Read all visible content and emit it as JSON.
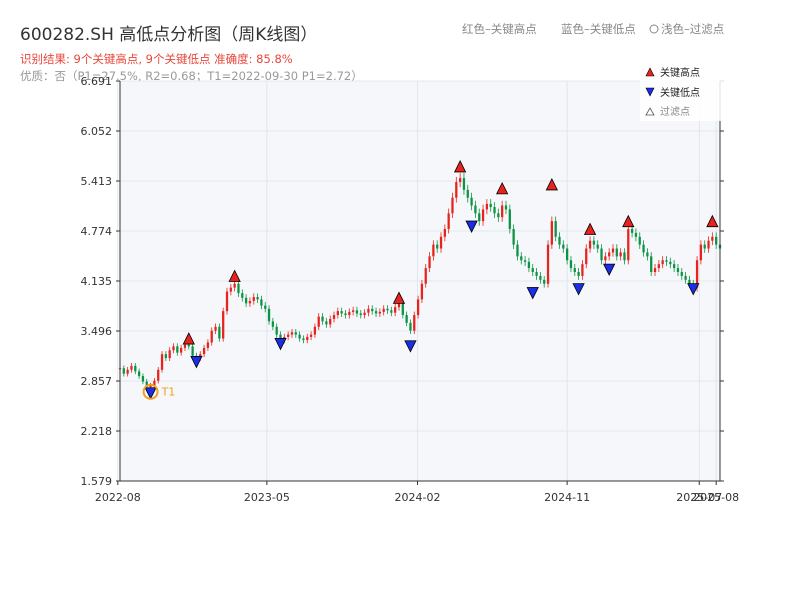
{
  "header": {
    "title": "600282.SH 高低点分析图（周K线图）",
    "result_line": "识别结果: 9个关键高点, 9个关键低点  准确度: 85.8%",
    "quality_line": "优质：否（P1=27.5%, R2=0.68；T1=2022-09-30 P1=2.72）",
    "top_legend": {
      "red": "红色–关键高点",
      "blue": "蓝色–关键低点",
      "gray": "浅色–过滤点"
    }
  },
  "legend": {
    "high": "关键高点",
    "low": "关键低点",
    "filtered": "过滤点"
  },
  "colors": {
    "up": "#e8231d",
    "down": "#0a9443",
    "high_marker": "#e8231d",
    "low_marker": "#1a2ee8",
    "t1": "#f0a020"
  },
  "chart_data": {
    "type": "candlestick",
    "y_ticks": [
      1.579,
      2.218,
      2.857,
      3.496,
      4.135,
      4.774,
      5.413,
      6.052,
      6.691
    ],
    "ylim": [
      1.579,
      6.691
    ],
    "x_ticks": [
      "2022-08",
      "2023-05",
      "2024-02",
      "2024-11",
      "2025-07",
      "2025-08"
    ],
    "x_range": [
      "2022-08-05",
      "2025-08-08"
    ],
    "grid": true,
    "legend_position": "top-right",
    "series": [
      {
        "date": "2022-08-05",
        "close": 3.02
      },
      {
        "date": "2022-08-12",
        "close": 2.95
      },
      {
        "date": "2022-08-19",
        "close": 3.0
      },
      {
        "date": "2022-08-26",
        "close": 3.05
      },
      {
        "date": "2022-09-02",
        "close": 2.98
      },
      {
        "date": "2022-09-09",
        "close": 2.92
      },
      {
        "date": "2022-09-16",
        "close": 2.85
      },
      {
        "date": "2022-09-23",
        "close": 2.78
      },
      {
        "date": "2022-09-30",
        "close": 2.8
      },
      {
        "date": "2022-10-07",
        "close": 2.86
      },
      {
        "date": "2022-10-14",
        "close": 3.0
      },
      {
        "date": "2022-10-21",
        "close": 3.2
      },
      {
        "date": "2022-10-28",
        "close": 3.15
      },
      {
        "date": "2022-11-04",
        "close": 3.25
      },
      {
        "date": "2022-11-11",
        "close": 3.3
      },
      {
        "date": "2022-11-18",
        "close": 3.22
      },
      {
        "date": "2022-11-25",
        "close": 3.28
      },
      {
        "date": "2022-12-02",
        "close": 3.32
      },
      {
        "date": "2022-12-09",
        "close": 3.3
      },
      {
        "date": "2022-12-16",
        "close": 3.18
      },
      {
        "date": "2022-12-23",
        "close": 3.15
      },
      {
        "date": "2022-12-30",
        "close": 3.2
      },
      {
        "date": "2023-01-06",
        "close": 3.28
      },
      {
        "date": "2023-01-13",
        "close": 3.35
      },
      {
        "date": "2023-01-20",
        "close": 3.5
      },
      {
        "date": "2023-01-27",
        "close": 3.55
      },
      {
        "date": "2023-02-03",
        "close": 3.4
      },
      {
        "date": "2023-02-10",
        "close": 3.75
      },
      {
        "date": "2023-02-17",
        "close": 4.0
      },
      {
        "date": "2023-02-24",
        "close": 4.05
      },
      {
        "date": "2023-03-03",
        "close": 4.1
      },
      {
        "date": "2023-03-10",
        "close": 3.98
      },
      {
        "date": "2023-03-17",
        "close": 3.92
      },
      {
        "date": "2023-03-24",
        "close": 3.85
      },
      {
        "date": "2023-03-31",
        "close": 3.88
      },
      {
        "date": "2023-04-07",
        "close": 3.93
      },
      {
        "date": "2023-04-14",
        "close": 3.9
      },
      {
        "date": "2023-04-21",
        "close": 3.82
      },
      {
        "date": "2023-04-28",
        "close": 3.78
      },
      {
        "date": "2023-05-05",
        "close": 3.62
      },
      {
        "date": "2023-05-12",
        "close": 3.55
      },
      {
        "date": "2023-05-19",
        "close": 3.45
      },
      {
        "date": "2023-05-26",
        "close": 3.38
      },
      {
        "date": "2023-06-02",
        "close": 3.42
      },
      {
        "date": "2023-06-09",
        "close": 3.45
      },
      {
        "date": "2023-06-16",
        "close": 3.48
      },
      {
        "date": "2023-06-23",
        "close": 3.45
      },
      {
        "date": "2023-06-30",
        "close": 3.4
      },
      {
        "date": "2023-07-07",
        "close": 3.38
      },
      {
        "date": "2023-07-14",
        "close": 3.42
      },
      {
        "date": "2023-07-21",
        "close": 3.45
      },
      {
        "date": "2023-07-28",
        "close": 3.55
      },
      {
        "date": "2023-08-04",
        "close": 3.68
      },
      {
        "date": "2023-08-11",
        "close": 3.62
      },
      {
        "date": "2023-08-18",
        "close": 3.58
      },
      {
        "date": "2023-08-25",
        "close": 3.65
      },
      {
        "date": "2023-09-01",
        "close": 3.7
      },
      {
        "date": "2023-09-08",
        "close": 3.75
      },
      {
        "date": "2023-09-15",
        "close": 3.72
      },
      {
        "date": "2023-09-22",
        "close": 3.7
      },
      {
        "date": "2023-09-29",
        "close": 3.74
      },
      {
        "date": "2023-10-06",
        "close": 3.76
      },
      {
        "date": "2023-10-13",
        "close": 3.72
      },
      {
        "date": "2023-10-20",
        "close": 3.7
      },
      {
        "date": "2023-10-27",
        "close": 3.73
      },
      {
        "date": "2023-11-03",
        "close": 3.78
      },
      {
        "date": "2023-11-10",
        "close": 3.75
      },
      {
        "date": "2023-11-17",
        "close": 3.72
      },
      {
        "date": "2023-11-24",
        "close": 3.74
      },
      {
        "date": "2023-12-01",
        "close": 3.78
      },
      {
        "date": "2023-12-08",
        "close": 3.76
      },
      {
        "date": "2023-12-15",
        "close": 3.73
      },
      {
        "date": "2023-12-22",
        "close": 3.8
      },
      {
        "date": "2023-12-29",
        "close": 3.85
      },
      {
        "date": "2024-01-05",
        "close": 3.7
      },
      {
        "date": "2024-01-12",
        "close": 3.6
      },
      {
        "date": "2024-01-19",
        "close": 3.5
      },
      {
        "date": "2024-01-26",
        "close": 3.7
      },
      {
        "date": "2024-02-02",
        "close": 3.9
      },
      {
        "date": "2024-02-09",
        "close": 4.1
      },
      {
        "date": "2024-02-16",
        "close": 4.3
      },
      {
        "date": "2024-02-23",
        "close": 4.45
      },
      {
        "date": "2024-03-01",
        "close": 4.6
      },
      {
        "date": "2024-03-08",
        "close": 4.55
      },
      {
        "date": "2024-03-15",
        "close": 4.7
      },
      {
        "date": "2024-03-22",
        "close": 4.8
      },
      {
        "date": "2024-03-29",
        "close": 5.0
      },
      {
        "date": "2024-04-05",
        "close": 5.2
      },
      {
        "date": "2024-04-12",
        "close": 5.4
      },
      {
        "date": "2024-04-19",
        "close": 5.45
      },
      {
        "date": "2024-04-26",
        "close": 5.3
      },
      {
        "date": "2024-05-03",
        "close": 5.2
      },
      {
        "date": "2024-05-10",
        "close": 5.1
      },
      {
        "date": "2024-05-17",
        "close": 5.0
      },
      {
        "date": "2024-05-24",
        "close": 4.9
      },
      {
        "date": "2024-05-31",
        "close": 5.05
      },
      {
        "date": "2024-06-07",
        "close": 5.12
      },
      {
        "date": "2024-06-14",
        "close": 5.08
      },
      {
        "date": "2024-06-21",
        "close": 5.0
      },
      {
        "date": "2024-06-28",
        "close": 4.95
      },
      {
        "date": "2024-07-05",
        "close": 5.1
      },
      {
        "date": "2024-07-12",
        "close": 5.05
      },
      {
        "date": "2024-07-19",
        "close": 4.8
      },
      {
        "date": "2024-07-26",
        "close": 4.6
      },
      {
        "date": "2024-08-02",
        "close": 4.45
      },
      {
        "date": "2024-08-09",
        "close": 4.4
      },
      {
        "date": "2024-08-16",
        "close": 4.38
      },
      {
        "date": "2024-08-23",
        "close": 4.3
      },
      {
        "date": "2024-08-30",
        "close": 4.25
      },
      {
        "date": "2024-09-06",
        "close": 4.2
      },
      {
        "date": "2024-09-13",
        "close": 4.15
      },
      {
        "date": "2024-09-20",
        "close": 4.1
      },
      {
        "date": "2024-09-27",
        "close": 4.6
      },
      {
        "date": "2024-10-04",
        "close": 4.9
      },
      {
        "date": "2024-10-11",
        "close": 4.7
      },
      {
        "date": "2024-10-18",
        "close": 4.6
      },
      {
        "date": "2024-10-25",
        "close": 4.55
      },
      {
        "date": "2024-11-01",
        "close": 4.4
      },
      {
        "date": "2024-11-08",
        "close": 4.3
      },
      {
        "date": "2024-11-15",
        "close": 4.25
      },
      {
        "date": "2024-11-22",
        "close": 4.2
      },
      {
        "date": "2024-11-29",
        "close": 4.35
      },
      {
        "date": "2024-12-06",
        "close": 4.55
      },
      {
        "date": "2024-12-13",
        "close": 4.65
      },
      {
        "date": "2024-12-20",
        "close": 4.6
      },
      {
        "date": "2024-12-27",
        "close": 4.55
      },
      {
        "date": "2025-01-03",
        "close": 4.4
      },
      {
        "date": "2025-01-10",
        "close": 4.45
      },
      {
        "date": "2025-01-17",
        "close": 4.5
      },
      {
        "date": "2025-01-24",
        "close": 4.55
      },
      {
        "date": "2025-01-31",
        "close": 4.45
      },
      {
        "date": "2025-02-07",
        "close": 4.5
      },
      {
        "date": "2025-02-14",
        "close": 4.4
      },
      {
        "date": "2025-02-21",
        "close": 4.8
      },
      {
        "date": "2025-02-28",
        "close": 4.75
      },
      {
        "date": "2025-03-07",
        "close": 4.7
      },
      {
        "date": "2025-03-14",
        "close": 4.6
      },
      {
        "date": "2025-03-21",
        "close": 4.5
      },
      {
        "date": "2025-03-28",
        "close": 4.45
      },
      {
        "date": "2025-04-04",
        "close": 4.25
      },
      {
        "date": "2025-04-11",
        "close": 4.3
      },
      {
        "date": "2025-04-18",
        "close": 4.35
      },
      {
        "date": "2025-04-25",
        "close": 4.4
      },
      {
        "date": "2025-05-02",
        "close": 4.38
      },
      {
        "date": "2025-05-09",
        "close": 4.35
      },
      {
        "date": "2025-05-16",
        "close": 4.3
      },
      {
        "date": "2025-05-23",
        "close": 4.25
      },
      {
        "date": "2025-05-30",
        "close": 4.2
      },
      {
        "date": "2025-06-06",
        "close": 4.15
      },
      {
        "date": "2025-06-13",
        "close": 4.1
      },
      {
        "date": "2025-06-20",
        "close": 4.05
      },
      {
        "date": "2025-06-27",
        "close": 4.4
      },
      {
        "date": "2025-07-04",
        "close": 4.6
      },
      {
        "date": "2025-07-11",
        "close": 4.55
      },
      {
        "date": "2025-07-18",
        "close": 4.65
      },
      {
        "date": "2025-07-25",
        "close": 4.7
      },
      {
        "date": "2025-08-01",
        "close": 4.6
      },
      {
        "date": "2025-08-08",
        "close": 4.55
      }
    ],
    "key_highs": [
      {
        "date": "2022-12-09",
        "value": 3.38
      },
      {
        "date": "2023-03-03",
        "value": 4.18
      },
      {
        "date": "2023-12-29",
        "value": 3.9
      },
      {
        "date": "2024-04-19",
        "value": 5.58
      },
      {
        "date": "2024-07-05",
        "value": 5.3
      },
      {
        "date": "2024-10-04",
        "value": 5.35
      },
      {
        "date": "2024-12-13",
        "value": 4.78
      },
      {
        "date": "2025-02-21",
        "value": 4.88
      },
      {
        "date": "2025-07-25",
        "value": 4.88
      }
    ],
    "key_lows": [
      {
        "date": "2022-09-30",
        "value": 2.72
      },
      {
        "date": "2022-12-23",
        "value": 3.12
      },
      {
        "date": "2023-05-26",
        "value": 3.35
      },
      {
        "date": "2024-01-19",
        "value": 3.32
      },
      {
        "date": "2024-05-10",
        "value": 4.85
      },
      {
        "date": "2024-08-30",
        "value": 4.0
      },
      {
        "date": "2024-11-22",
        "value": 4.05
      },
      {
        "date": "2025-01-17",
        "value": 4.3
      },
      {
        "date": "2025-06-20",
        "value": 4.05
      }
    ],
    "t1": {
      "date": "2022-09-30",
      "value": 2.72,
      "label": "T1"
    }
  }
}
